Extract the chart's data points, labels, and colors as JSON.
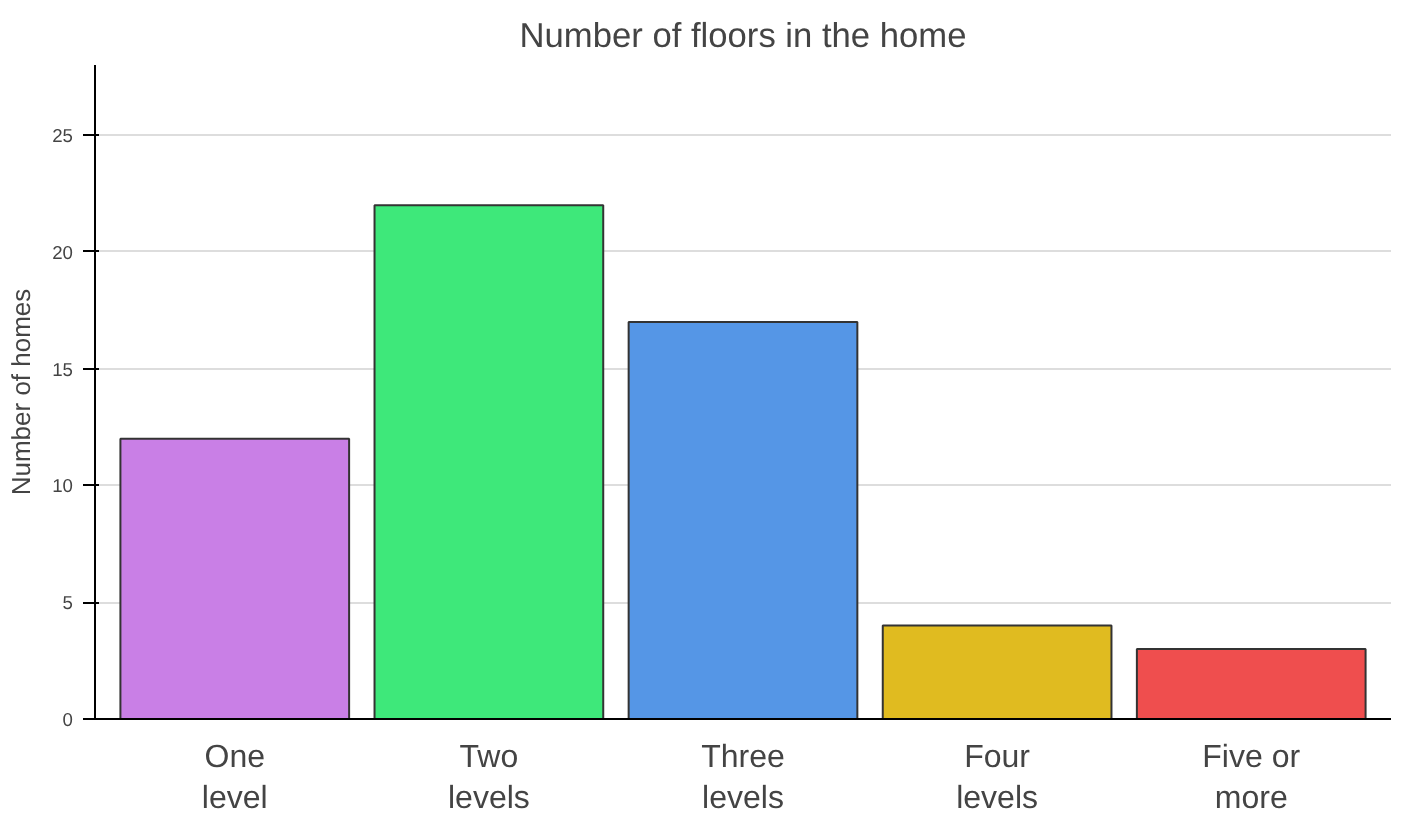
{
  "chart_data": {
    "type": "bar",
    "title": "Number of floors in the home",
    "ylabel": "Number of homes",
    "categories": [
      "One level",
      "Two levels",
      "Three levels",
      "Four levels",
      "Five or more"
    ],
    "values": [
      12,
      22,
      17,
      4,
      3
    ],
    "colors": [
      "#c97fe6",
      "#3ee87a",
      "#5596e6",
      "#e0bb20",
      "#ef4e4e"
    ],
    "ylim": [
      0,
      28
    ],
    "yticks": [
      0,
      5,
      10,
      15,
      20,
      25
    ],
    "grid": "y"
  }
}
